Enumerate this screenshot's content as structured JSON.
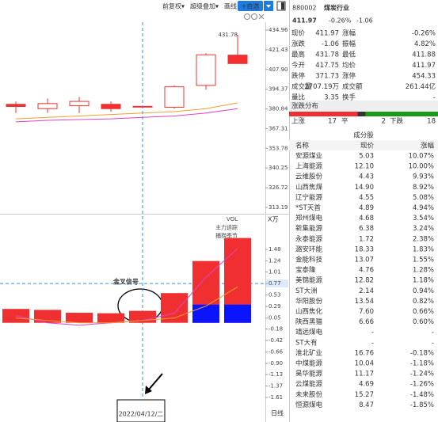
{
  "toolbar": {
    "items": [
      "前复权▾",
      "超级叠加▾",
      "画线"
    ],
    "button": "+自选"
  },
  "price_chart": {
    "type": "candlestick",
    "ylim": [
      308.84,
      439.31
    ],
    "yticks": [
      434.96,
      421.43,
      {
        "value": 407.9,
        "label": "407.90"
      },
      394.37,
      380.84,
      367.31,
      353.78,
      340.25,
      326.72,
      313.19
    ],
    "open": [
      382.5,
      381,
      383,
      384,
      382.5,
      382,
      397,
      417.75
    ],
    "close": [
      384,
      384.5,
      386,
      381,
      382.6,
      396,
      418,
      411.97
    ],
    "high": [
      386,
      388,
      389,
      386,
      383,
      397,
      419,
      431.78
    ],
    "low": [
      378,
      378,
      378,
      379,
      382,
      381,
      394,
      411.88
    ],
    "filled": [
      true,
      false,
      false,
      true,
      true,
      false,
      false,
      true
    ],
    "color": "#f03030",
    "series": [
      {
        "color": "#f0a030",
        "values": [
          374,
          375,
          376,
          377,
          378,
          379,
          381,
          385
        ]
      },
      {
        "color": "#e040c0",
        "values": [
          372,
          373,
          373.5,
          374,
          375,
          376,
          378,
          381
        ]
      }
    ],
    "crosshair_index": 4,
    "date_label": "2022/04/12/二",
    "period": "日线"
  },
  "indicator_chart": {
    "type": "bar",
    "labels": [
      "VOL",
      "主力追踪",
      "捕捞季节"
    ],
    "unit": "X万",
    "ylim": [
      -1.74,
      1.73
    ],
    "yticks": [
      1.48,
      1.24,
      1.01,
      0.77,
      0.53,
      0.29,
      0.05,
      -0.18,
      -0.42,
      -0.66,
      {
        "value": -0.9,
        "label": "-0.90"
      },
      -1.13,
      -1.37,
      -1.61
    ],
    "highlight_tick": 3,
    "bars": [
      {
        "color": "#f03030",
        "low": [
          -0.05,
          -0.05,
          -0.05,
          -0.05,
          -0.05,
          -0.05,
          -0.05,
          -0.05
        ],
        "high": [
          0.24,
          0.22,
          0.16,
          0.15,
          0.2,
          0.57,
          1.24,
          1.72
        ]
      },
      {
        "color": "#0a14ff",
        "low": [
          null,
          null,
          null,
          null,
          null,
          null,
          -0.05,
          -0.05
        ],
        "high": [
          null,
          null,
          null,
          null,
          null,
          null,
          0.33,
          0.33
        ]
      }
    ],
    "lines": [
      {
        "color": "#e040c0",
        "values": [
          0.1,
          -0.05,
          -0.1,
          -0.05,
          0.0,
          0.15,
          0.9,
          1.5
        ]
      },
      {
        "color": "#f0a030",
        "values": [
          0.05,
          0.0,
          -0.05,
          -0.05,
          0.0,
          0.05,
          0.3,
          0.7
        ]
      }
    ],
    "annotation": "金叉信号"
  },
  "quote": {
    "code": "880002",
    "name": "煤炭行业",
    "price": "411.97",
    "change_pct": "-0.26%",
    "change": "-1.06",
    "stats": [
      [
        "现价",
        "411.97",
        "涨幅",
        "-0.26%"
      ],
      [
        "涨跌",
        "-1.06",
        "振幅",
        "4.82%"
      ],
      [
        "最高",
        "431.78",
        "最低",
        "411.88"
      ],
      [
        "今开",
        "417.75",
        "均价",
        "411.97"
      ],
      [
        "跌停",
        "371.73",
        "涨停",
        "454.33"
      ],
      [
        "成交量",
        "2707.19万",
        "成交额",
        "261.44亿"
      ],
      [
        "量比",
        "3.35",
        "换手",
        "-"
      ]
    ],
    "stat_colors": [
      [
        "#1a9a1a",
        "#1a9a1a"
      ],
      [
        "#1a9a1a",
        "#333"
      ],
      [
        "#f03030",
        "#1a9a1a"
      ],
      [
        "#1a9a1a",
        "#1a9a1a"
      ],
      [
        "#1a9a1a",
        "#f03030"
      ],
      [
        "#333",
        "#333"
      ],
      [
        "#333",
        "#333"
      ]
    ],
    "distribution": {
      "title": "涨跌分布",
      "up_label": "上涨",
      "up": 17,
      "flat_label": "平",
      "flat": 2,
      "down_label": "下跌",
      "down": 18
    }
  },
  "constituents": {
    "title": "成分股",
    "headers": [
      "名称",
      "现价",
      "涨幅"
    ],
    "rows": [
      [
        "安源煤业",
        "5.03",
        "10.07%"
      ],
      [
        "上海能源",
        "12.10",
        "10.00%"
      ],
      [
        "云维股份",
        "4.43",
        "9.93%"
      ],
      [
        "山西焦煤",
        "14.90",
        "8.92%"
      ],
      [
        "辽宁能源",
        "4.55",
        "5.08%"
      ],
      [
        "*ST天首",
        "4.89",
        "4.94%"
      ],
      [
        "郑州煤电",
        "4.68",
        "3.54%"
      ],
      [
        "新集能源",
        "6.38",
        "3.24%"
      ],
      [
        "永泰能源",
        "1.72",
        "2.38%"
      ],
      [
        "潞安环能",
        "18.33",
        "1.83%"
      ],
      [
        "金能科技",
        "13.07",
        "1.55%"
      ],
      [
        "宝泰隆",
        "4.76",
        "1.28%"
      ],
      [
        "美锦能源",
        "12.82",
        "1.18%"
      ],
      [
        "ST大洲",
        "2.14",
        "0.94%"
      ],
      [
        "华阳股份",
        "13.54",
        "0.82%"
      ],
      [
        "山西焦化",
        "7.60",
        "0.66%"
      ],
      [
        "陕西黑猫",
        "6.66",
        "0.60%"
      ],
      [
        "靖远煤电",
        "-",
        "-"
      ],
      [
        "ST大有",
        "-",
        "-"
      ],
      [
        "淮北矿业",
        "16.76",
        "-0.18%"
      ],
      [
        "中煤能源",
        "10.04",
        "-1.18%"
      ],
      [
        "昊华能源",
        "11.17",
        "-1.24%"
      ],
      [
        "云煤能源",
        "4.69",
        "-1.26%"
      ],
      [
        "未来股份",
        "15.27",
        "-1.48%"
      ],
      [
        "恒源煤电",
        "8.47",
        "-1.85%"
      ]
    ],
    "linked": [
      true,
      false,
      true,
      true,
      false,
      false,
      false,
      false,
      false,
      true,
      false,
      true,
      true,
      false,
      true,
      false,
      false,
      false,
      false,
      true,
      false,
      true,
      false,
      false,
      false
    ]
  }
}
